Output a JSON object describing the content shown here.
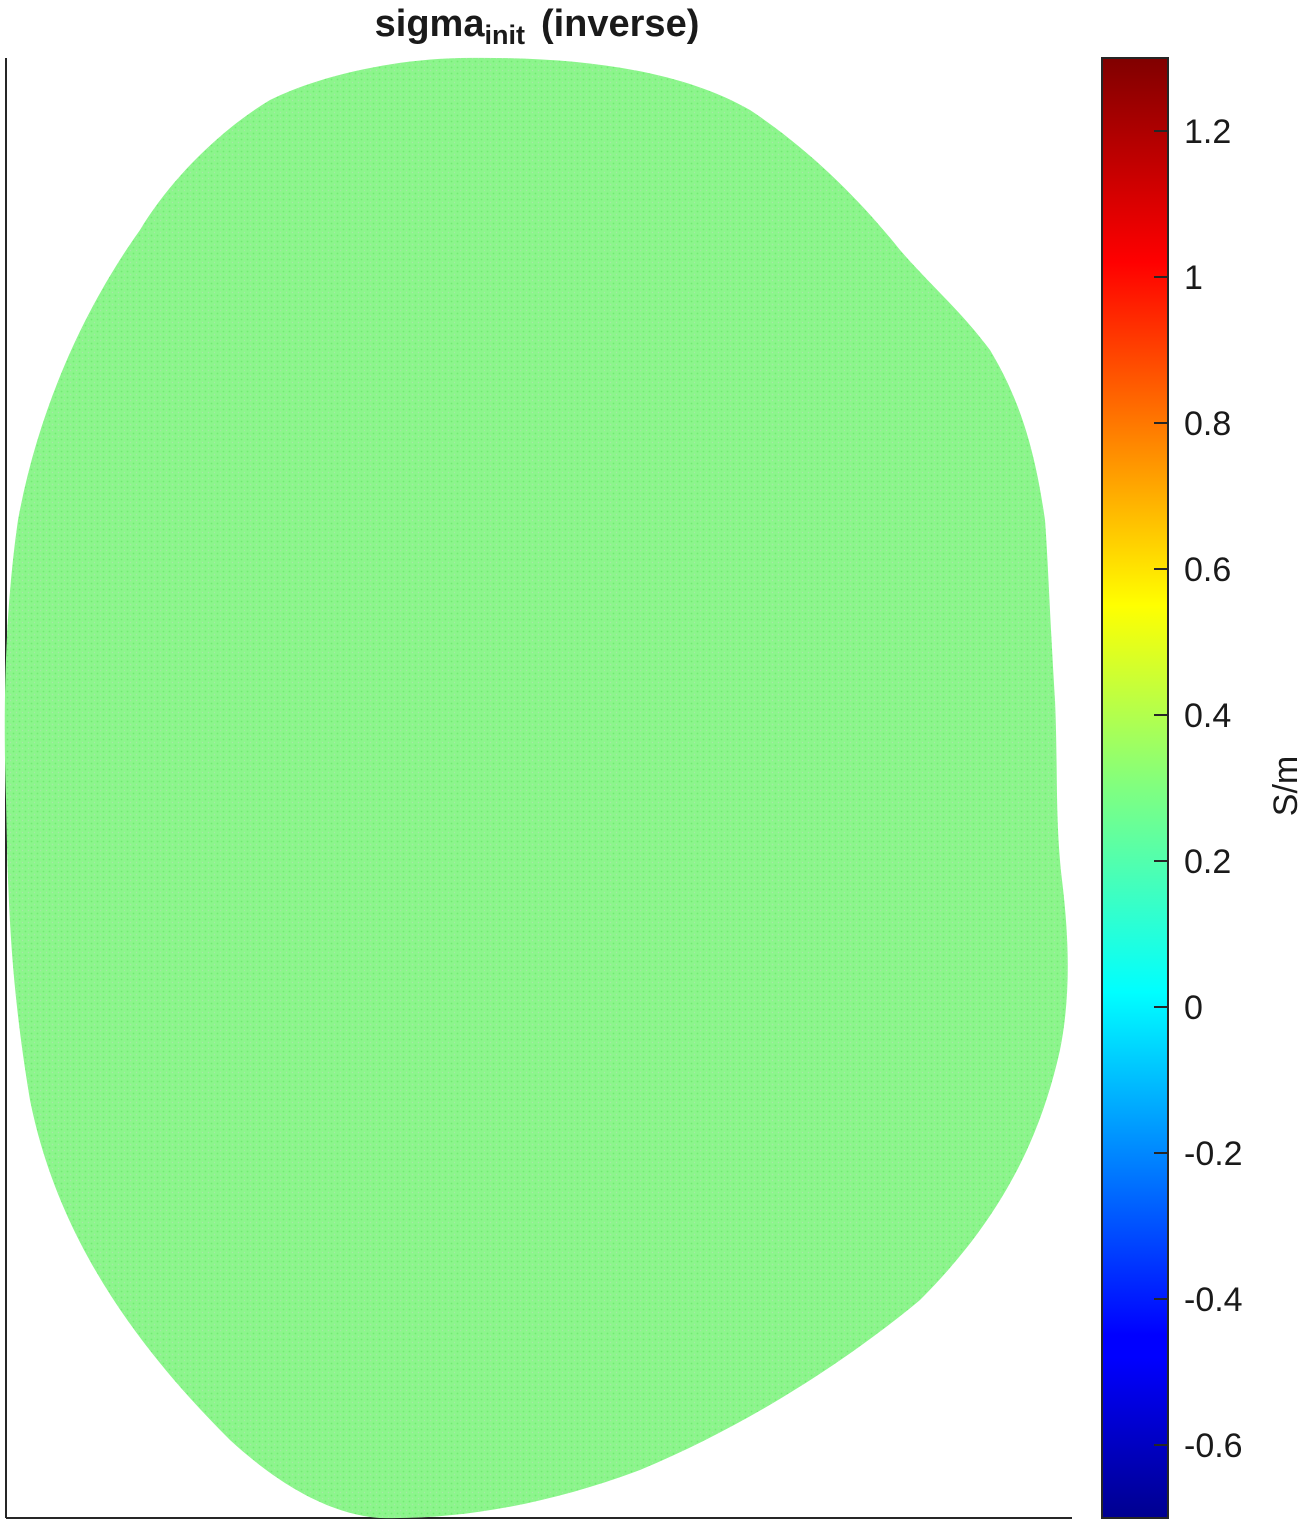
{
  "chart_data": {
    "type": "heatmap",
    "title": {
      "main": "sigma",
      "subscript": "init",
      "suffix": "(inverse)"
    },
    "field": {
      "description_value": 0.3,
      "uniform": true
    },
    "colorbar": {
      "label": "S/m",
      "colormap": "jet",
      "limits": [
        -0.7,
        1.3
      ],
      "ticks": [
        -0.6,
        -0.4,
        -0.2,
        0,
        0.2,
        0.4,
        0.6,
        0.8,
        1,
        1.2
      ],
      "tick_labels": [
        "-0.6",
        "-0.4",
        "-0.2",
        "0",
        "0.2",
        "0.4",
        "0.6",
        "0.8",
        "1",
        "1.2"
      ]
    },
    "colors": {
      "field_fill": "#8cf58c",
      "mesh_dot": "#6ee86e",
      "axis": "#262626"
    }
  }
}
